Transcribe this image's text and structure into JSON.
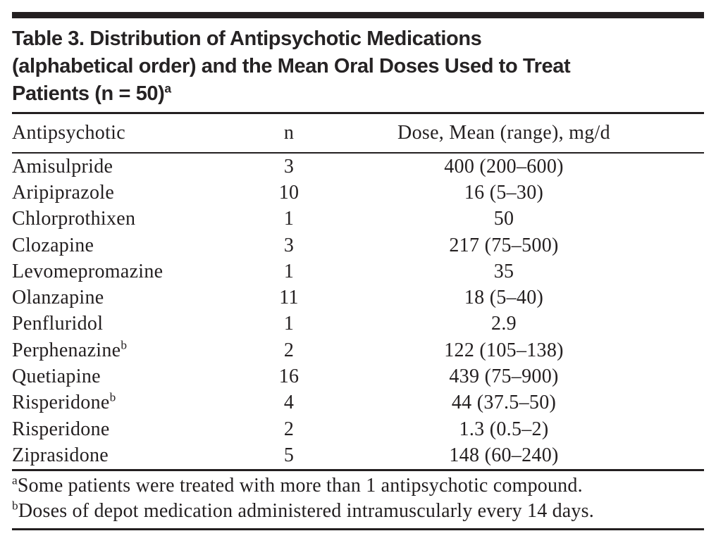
{
  "title": {
    "lines": [
      "Table 3. Distribution of Antipsychotic Medications",
      "(alphabetical order) and the Mean Oral Doses Used to Treat",
      "Patients (n = 50)"
    ],
    "superscript": "a"
  },
  "table": {
    "headers": [
      "Antipsychotic",
      "n",
      "Dose, Mean (range), mg/d"
    ],
    "rows": [
      {
        "drug": "Amisulpride",
        "sup": "",
        "n": "3",
        "dose": "400 (200–600)"
      },
      {
        "drug": "Aripiprazole",
        "sup": "",
        "n": "10",
        "dose": "16 (5–30)"
      },
      {
        "drug": "Chlorprothixen",
        "sup": "",
        "n": "1",
        "dose": "50"
      },
      {
        "drug": "Clozapine",
        "sup": "",
        "n": "3",
        "dose": "217 (75–500)"
      },
      {
        "drug": "Levomepromazine",
        "sup": "",
        "n": "1",
        "dose": "35"
      },
      {
        "drug": "Olanzapine",
        "sup": "",
        "n": "11",
        "dose": "18 (5–40)"
      },
      {
        "drug": "Penfluridol",
        "sup": "",
        "n": "1",
        "dose": "2.9"
      },
      {
        "drug": "Perphenazine",
        "sup": "b",
        "n": "2",
        "dose": "122 (105–138)"
      },
      {
        "drug": "Quetiapine",
        "sup": "",
        "n": "16",
        "dose": "439 (75–900)"
      },
      {
        "drug": "Risperidone",
        "sup": "b",
        "n": "4",
        "dose": "44 (37.5–50)"
      },
      {
        "drug": "Risperidone",
        "sup": "",
        "n": "2",
        "dose": "1.3 (0.5–2)"
      },
      {
        "drug": "Ziprasidone",
        "sup": "",
        "n": "5",
        "dose": "148 (60–240)"
      }
    ]
  },
  "footnotes": [
    {
      "marker": "a",
      "text": "Some patients were treated with more than 1 antipsychotic compound."
    },
    {
      "marker": "b",
      "text": "Doses of depot medication administered intramuscularly every 14 days."
    }
  ],
  "colors": {
    "ink": "#231f20",
    "background": "#ffffff"
  }
}
